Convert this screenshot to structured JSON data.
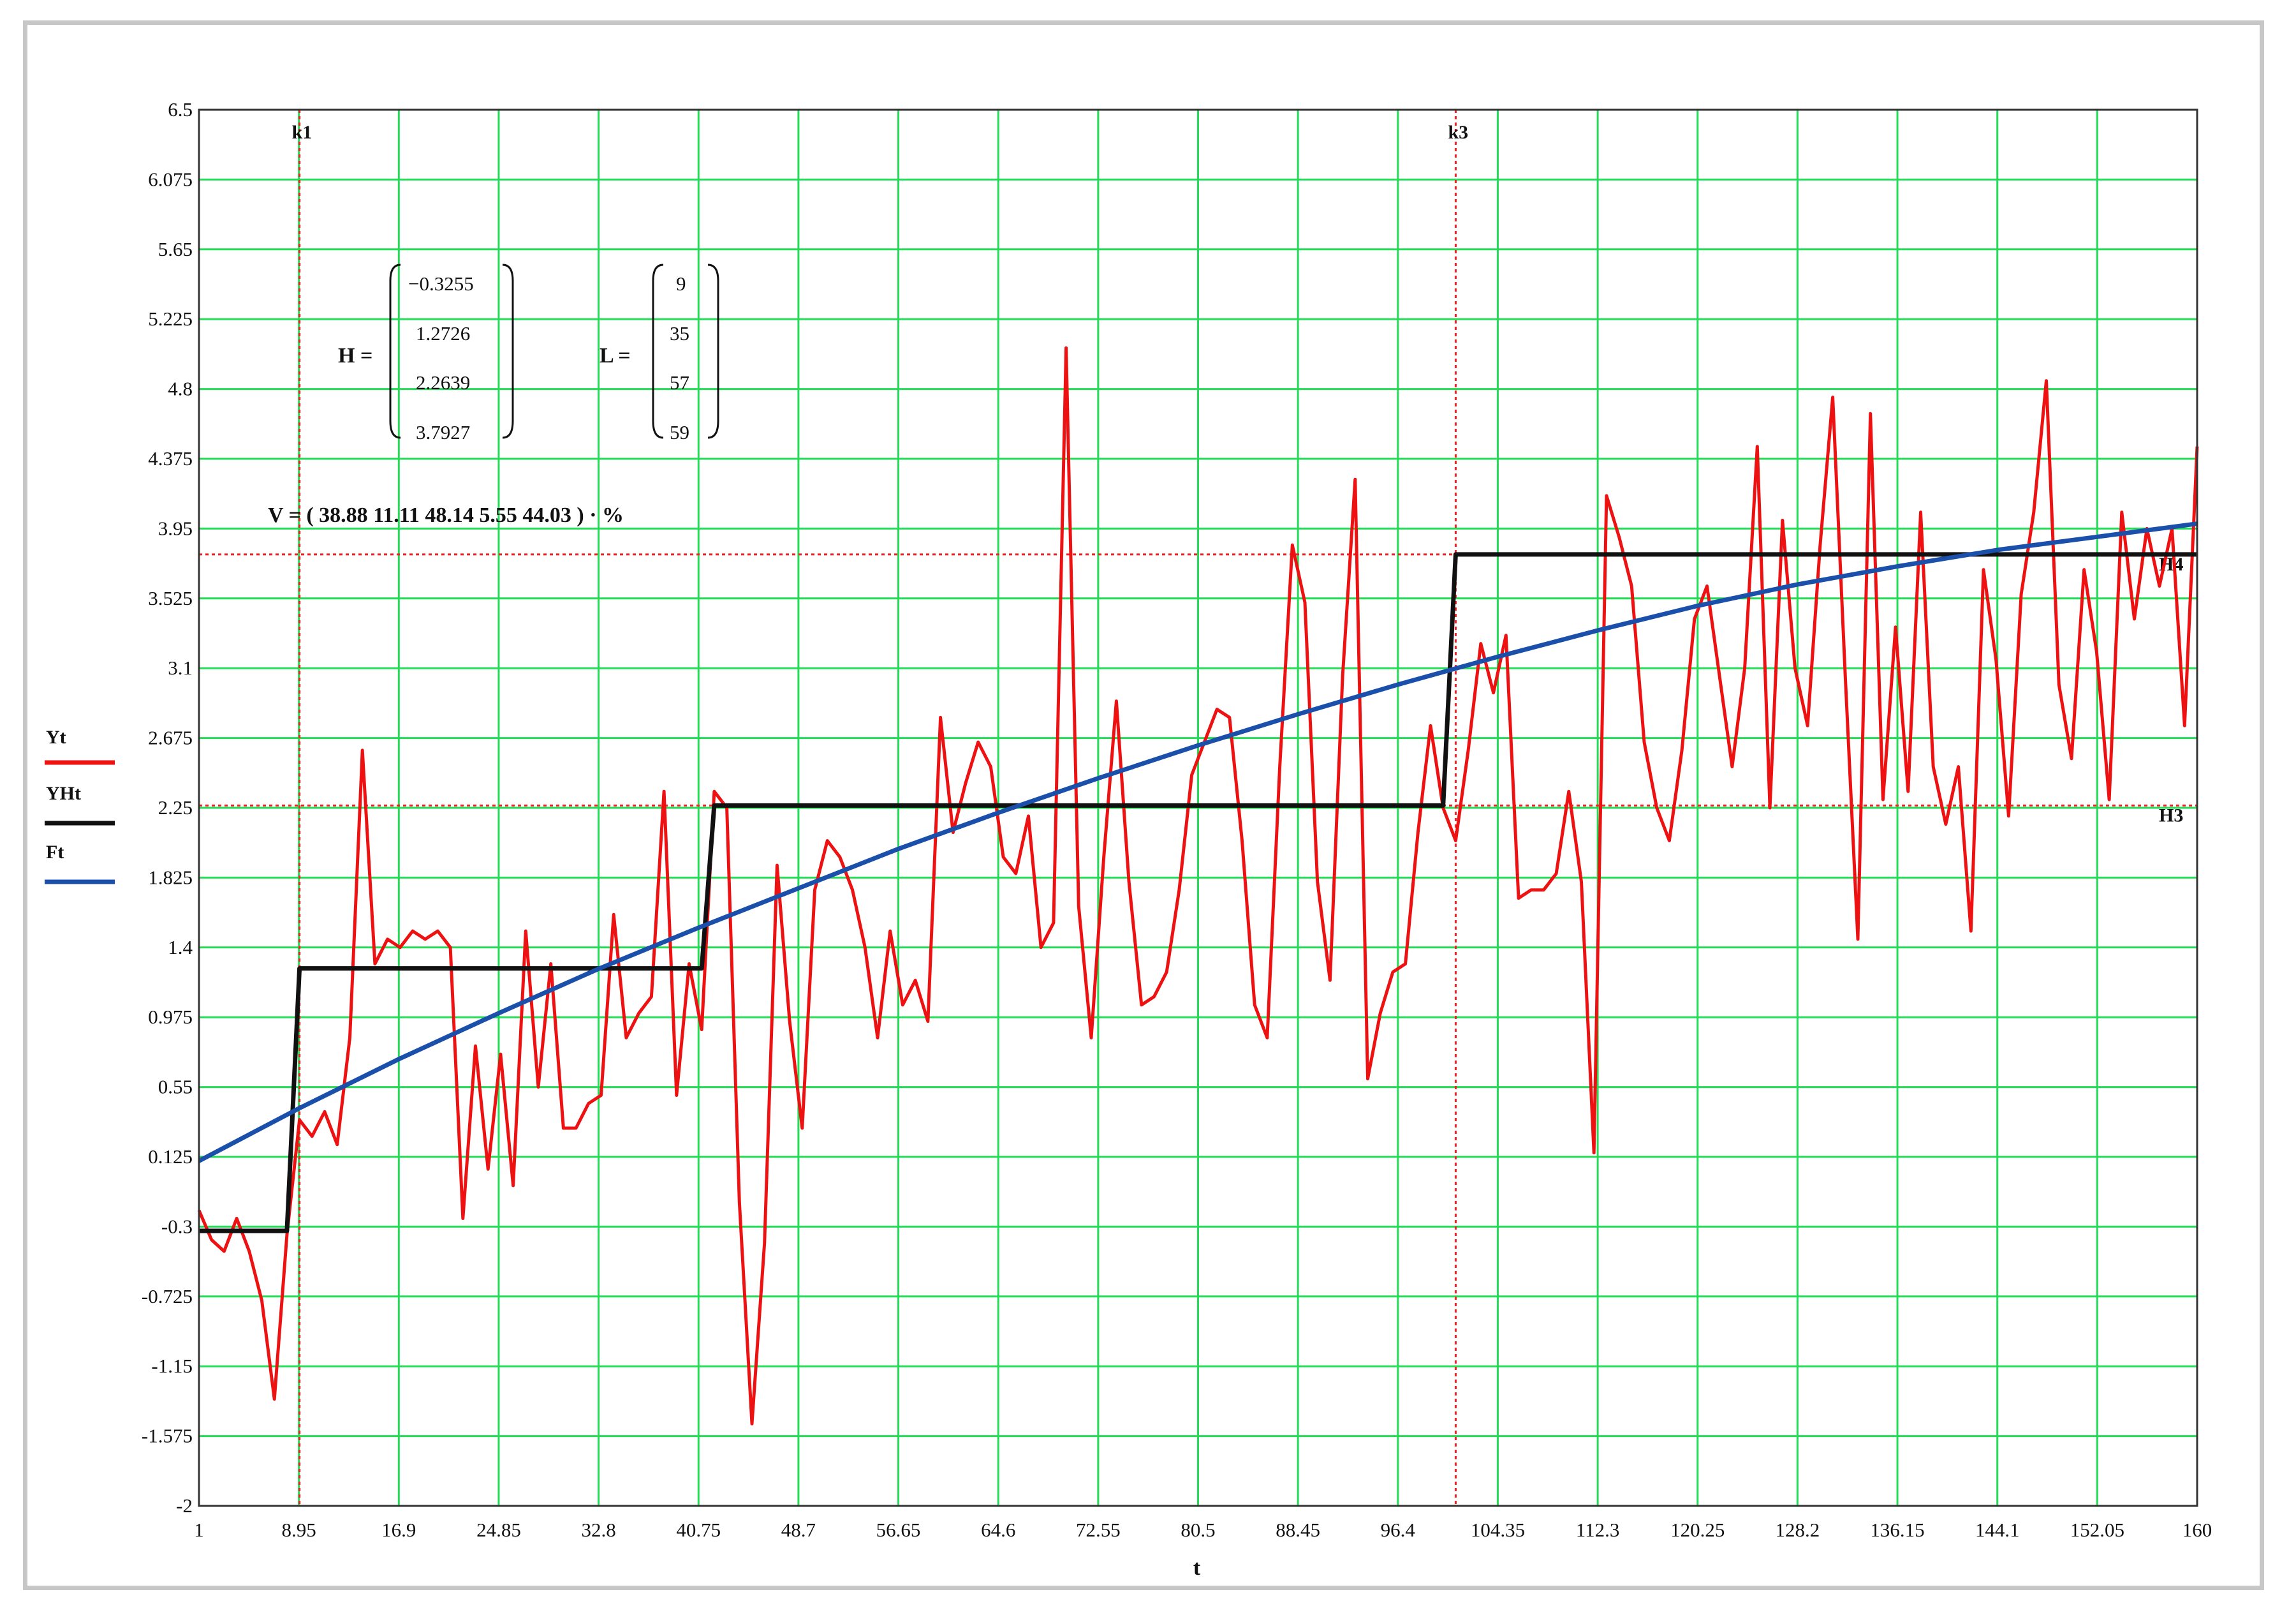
{
  "chart_data": {
    "type": "line",
    "xlabel": "t",
    "ylabel": "",
    "xlim": [
      1,
      160
    ],
    "ylim": [
      -2,
      6.5
    ],
    "grid": true,
    "grid_color": "#22dd55",
    "x_ticks": [
      "1",
      "8.95",
      "16.9",
      "24.85",
      "32.8",
      "40.75",
      "48.7",
      "56.65",
      "64.6",
      "72.55",
      "80.5",
      "88.45",
      "96.4",
      "104.35",
      "112.3",
      "120.25",
      "128.2",
      "136.15",
      "144.1",
      "152.05",
      "160"
    ],
    "y_ticks": [
      "-2",
      "-1.575",
      "-1.15",
      "-0.725",
      "-0.3",
      "0.125",
      "0.55",
      "0.975",
      "1.4",
      "1.825",
      "2.25",
      "2.675",
      "3.1",
      "3.525",
      "3.95",
      "4.375",
      "4.8",
      "5.225",
      "5.65",
      "6.075",
      "6.5"
    ],
    "legend": [
      {
        "label": "Yt",
        "color": "#ee1111"
      },
      {
        "label": "YHt",
        "color": "#111111"
      },
      {
        "label": "Ft",
        "color": "#1a4faa"
      }
    ],
    "markers_vertical": [
      {
        "label": "k1",
        "x": 9
      },
      {
        "label": "k3",
        "x": 101
      }
    ],
    "markers_horizontal": [
      {
        "label": "H3",
        "y": 2.2639
      },
      {
        "label": "H4",
        "y": 3.7927
      }
    ],
    "series": [
      {
        "name": "Yt",
        "color": "#ee1111",
        "x_start": 1,
        "values": [
          -0.2,
          -0.38,
          -0.45,
          -0.25,
          -0.45,
          -0.75,
          -1.35,
          -0.35,
          0.35,
          0.25,
          0.4,
          0.2,
          0.85,
          2.6,
          1.3,
          1.45,
          1.4,
          1.5,
          1.45,
          1.5,
          1.4,
          -0.25,
          0.8,
          0.05,
          0.75,
          -0.05,
          1.5,
          0.55,
          1.3,
          0.3,
          0.3,
          0.45,
          0.5,
          1.6,
          0.85,
          1.0,
          1.1,
          2.35,
          0.5,
          1.3,
          0.9,
          2.35,
          2.25,
          -0.15,
          -1.5,
          -0.4,
          1.9,
          0.95,
          0.3,
          1.75,
          2.05,
          1.95,
          1.75,
          1.4,
          0.85,
          1.5,
          1.05,
          1.2,
          0.95,
          2.8,
          2.1,
          2.4,
          2.65,
          2.5,
          1.95,
          1.85,
          2.2,
          1.4,
          1.55,
          5.05,
          1.65,
          0.85,
          1.95,
          2.9,
          1.8,
          1.05,
          1.1,
          1.25,
          1.75,
          2.45,
          2.65,
          2.85,
          2.8,
          2.05,
          1.05,
          0.85,
          2.5,
          3.85,
          3.5,
          1.8,
          1.2,
          3.05,
          4.25,
          0.6,
          1.0,
          1.25,
          1.3,
          2.1,
          2.75,
          2.25,
          2.05,
          2.6,
          3.25,
          2.95,
          3.3,
          1.7,
          1.75,
          1.75,
          1.85,
          2.35,
          1.8,
          0.15,
          4.15,
          3.9,
          3.6,
          2.65,
          2.25,
          2.05,
          2.6,
          3.4,
          3.6,
          3.05,
          2.5,
          3.1,
          4.45,
          2.25,
          4.0,
          3.1,
          2.75,
          3.85,
          4.75,
          3.05,
          1.45,
          4.65,
          2.3,
          3.35,
          2.35,
          4.05,
          2.5,
          2.15,
          2.5,
          1.5,
          3.7,
          3.15,
          2.2,
          3.55,
          4.05,
          4.85,
          3.0,
          2.55,
          3.7,
          3.2,
          2.3,
          4.05,
          3.4,
          3.95,
          3.6,
          3.95,
          2.75,
          4.45
        ]
      },
      {
        "name": "YHt",
        "color": "#111111",
        "steps": [
          {
            "x0": 1,
            "x1": 8,
            "y": -0.3255
          },
          {
            "x0": 9,
            "x1": 41,
            "y": 1.2726
          },
          {
            "x0": 42,
            "x1": 100,
            "y": 2.2639
          },
          {
            "x0": 101,
            "x1": 160,
            "y": 3.7927
          }
        ]
      },
      {
        "name": "Ft",
        "color": "#1a4faa",
        "x": [
          1,
          8.95,
          16.9,
          24.85,
          32.8,
          40.75,
          48.7,
          56.65,
          64.6,
          72.55,
          80.5,
          88.45,
          96.4,
          104.35,
          112.3,
          120.25,
          128.2,
          136.15,
          144.1,
          152.05,
          160
        ],
        "y": [
          0.1,
          0.42,
          0.72,
          1.0,
          1.27,
          1.52,
          1.76,
          2.0,
          2.22,
          2.43,
          2.63,
          2.82,
          3.0,
          3.17,
          3.33,
          3.48,
          3.61,
          3.72,
          3.82,
          3.9,
          3.98
        ]
      }
    ]
  },
  "annotations": {
    "h_label": "H =",
    "h_values": [
      "−0.3255",
      "1.2726",
      "2.2639",
      "3.7927"
    ],
    "l_label": "L =",
    "l_values": [
      "9",
      "35",
      "57",
      "59"
    ],
    "v_label": "V = ( 38.88   11.11   48.14   5.55   44.03 ) · %"
  }
}
